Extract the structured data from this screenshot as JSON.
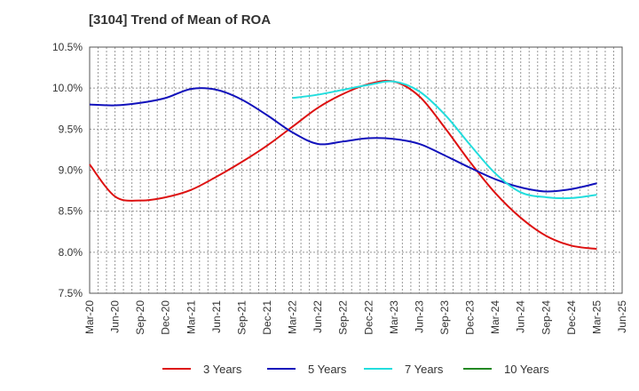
{
  "chart_data": {
    "type": "line",
    "title": "[3104]  Trend of Mean of ROA",
    "xlabel": "",
    "ylabel": "",
    "ylim": [
      7.5,
      10.5
    ],
    "y_ticks": [
      "7.5%",
      "8.0%",
      "8.5%",
      "9.0%",
      "9.5%",
      "10.0%",
      "10.5%"
    ],
    "y_tick_values": [
      7.5,
      8.0,
      8.5,
      9.0,
      9.5,
      10.0,
      10.5
    ],
    "categories": [
      "Mar-20",
      "Jun-20",
      "Sep-20",
      "Dec-20",
      "Mar-21",
      "Jun-21",
      "Sep-21",
      "Dec-21",
      "Mar-22",
      "Jun-22",
      "Sep-22",
      "Dec-22",
      "Mar-23",
      "Jun-23",
      "Sep-23",
      "Dec-23",
      "Mar-24",
      "Jun-24",
      "Sep-24",
      "Dec-24",
      "Mar-25",
      "Jun-25"
    ],
    "grid": true,
    "legend_position": "bottom",
    "series": [
      {
        "name": "3 Years",
        "color": "#dd1111",
        "values": [
          9.07,
          8.68,
          8.63,
          8.67,
          8.76,
          8.92,
          9.1,
          9.3,
          9.53,
          9.76,
          9.93,
          10.05,
          10.08,
          9.9,
          9.52,
          9.1,
          8.72,
          8.42,
          8.2,
          8.08,
          8.04,
          null
        ]
      },
      {
        "name": "5 Years",
        "color": "#1111bb",
        "values": [
          9.8,
          9.79,
          9.82,
          9.88,
          9.99,
          9.98,
          9.86,
          9.67,
          9.46,
          9.32,
          9.35,
          9.39,
          9.38,
          9.32,
          9.18,
          9.03,
          8.89,
          8.79,
          8.74,
          8.77,
          8.84,
          null
        ]
      },
      {
        "name": "7 Years",
        "color": "#22dddd",
        "values": [
          null,
          null,
          null,
          null,
          null,
          null,
          null,
          null,
          9.88,
          9.92,
          9.98,
          10.04,
          10.08,
          9.96,
          9.68,
          9.31,
          8.96,
          8.73,
          8.67,
          8.66,
          8.7,
          null
        ]
      },
      {
        "name": "10 Years",
        "color": "#228822",
        "values": [
          null,
          null,
          null,
          null,
          null,
          null,
          null,
          null,
          null,
          null,
          null,
          null,
          null,
          null,
          null,
          null,
          null,
          null,
          null,
          null,
          null,
          null
        ]
      }
    ]
  }
}
